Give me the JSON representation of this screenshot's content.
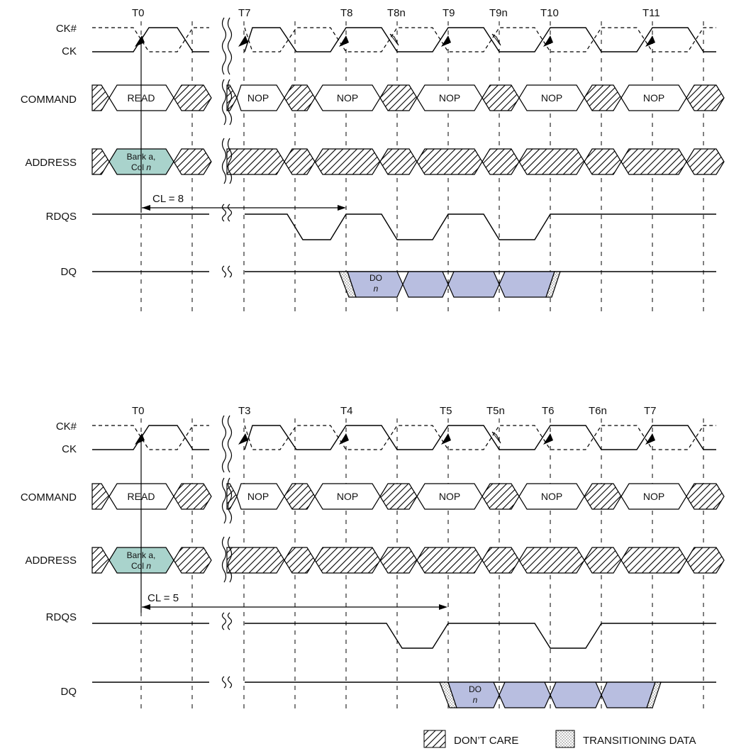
{
  "diagrams": [
    {
      "id": "cl8",
      "tick_labels": [
        "T0",
        "T7",
        "T8",
        "T8n",
        "T9",
        "T9n",
        "T10",
        "T11"
      ],
      "signal_labels": {
        "ck_bar": "CK#",
        "ck": "CK",
        "command": "COMMAND",
        "address": "ADDRESS",
        "rdqs": "RDQS",
        "dq": "DQ"
      },
      "commands": [
        "READ",
        "NOP",
        "NOP",
        "NOP",
        "NOP",
        "NOP"
      ],
      "address": {
        "line1": "Bank a,",
        "line2_prefix": "Col ",
        "line2_var": "n"
      },
      "cl_label": "CL = 8",
      "dq_label": {
        "line1": "DO",
        "line2": "n"
      }
    },
    {
      "id": "cl5",
      "tick_labels": [
        "T0",
        "T3",
        "T4",
        "T5",
        "T5n",
        "T6",
        "T6n",
        "T7"
      ],
      "signal_labels": {
        "ck_bar": "CK#",
        "ck": "CK",
        "command": "COMMAND",
        "address": "ADDRESS",
        "rdqs": "RDQS",
        "dq": "DQ"
      },
      "commands": [
        "READ",
        "NOP",
        "NOP",
        "NOP",
        "NOP",
        "NOP"
      ],
      "address": {
        "line1": "Bank a,",
        "line2_prefix": "Col ",
        "line2_var": "n"
      },
      "cl_label": "CL = 5",
      "dq_label": {
        "line1": "DO",
        "line2": "n"
      }
    }
  ],
  "legend": {
    "dont_care": "DON’T CARE",
    "transitioning": "TRANSITIONING DATA"
  },
  "colors": {
    "address_fill": "#a9d3cc",
    "data_fill": "#b8bee0",
    "line": "#000000"
  }
}
